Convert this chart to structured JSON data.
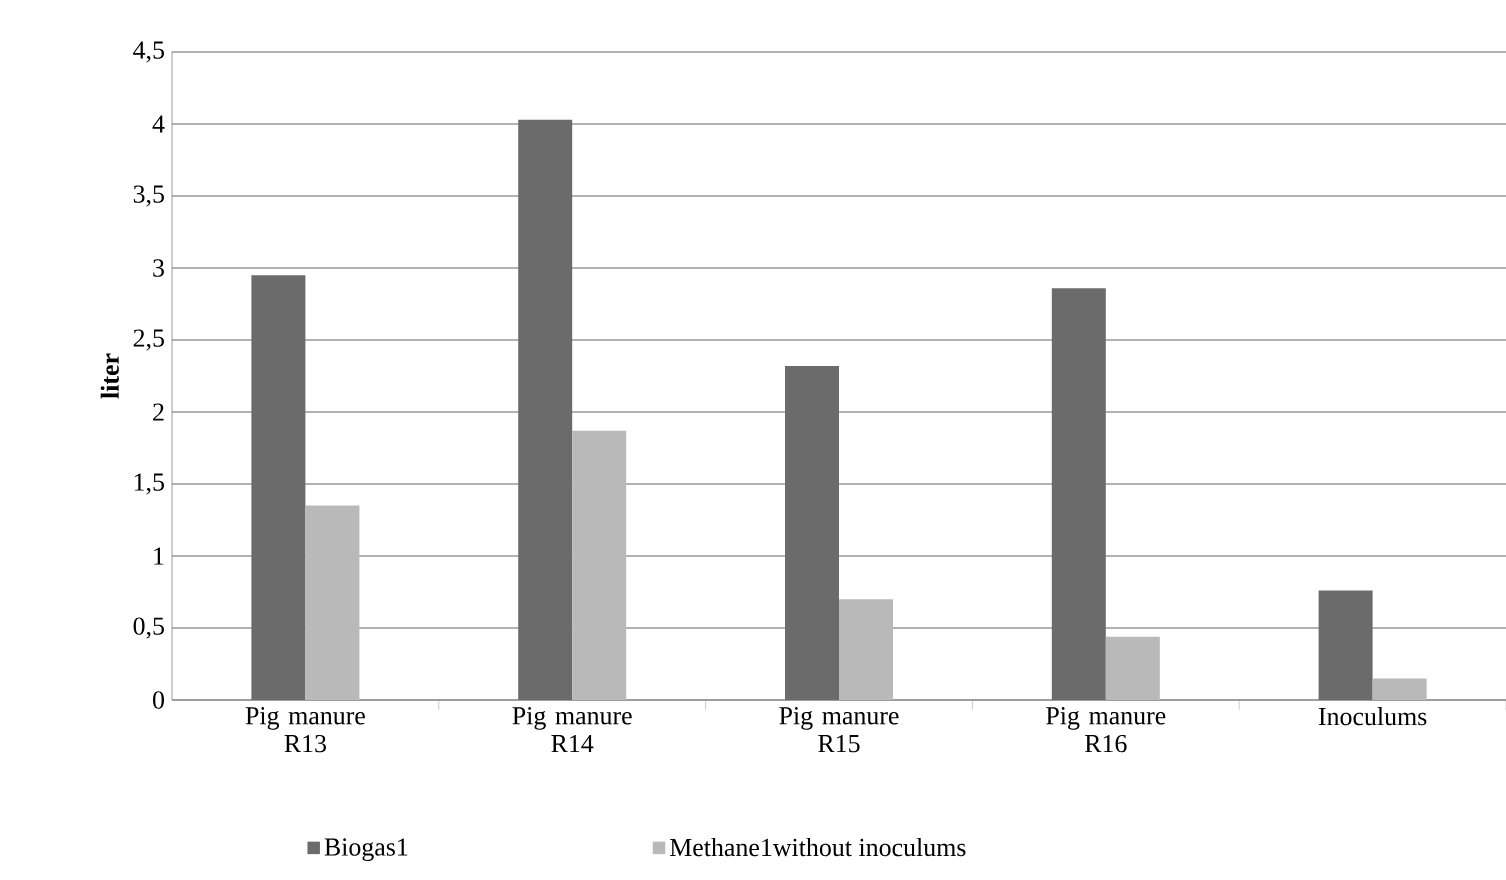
{
  "chart_data": {
    "type": "bar",
    "ylabel": "liter",
    "categories": [
      "Pig manure R13",
      "Pig manure R14",
      "Pig manure R15",
      "Pig manure R16",
      "Inoculums"
    ],
    "series": [
      {
        "name": "Biogas1",
        "color": "#6b6b6b",
        "values": [
          2.95,
          4.03,
          2.32,
          2.86,
          0.76
        ]
      },
      {
        "name": "Methane1without inoculums",
        "color": "#b9b9b9",
        "values": [
          1.35,
          1.87,
          0.7,
          0.44,
          0.15
        ]
      }
    ],
    "ylim": [
      0,
      4.5
    ],
    "yticks": [
      0,
      {
        "value": 0.5,
        "label": "0,5"
      },
      1,
      {
        "value": 1.5,
        "label": "1,5"
      },
      2,
      {
        "value": 2.5,
        "label": "2,5"
      },
      3,
      {
        "value": 3.5,
        "label": "3,5"
      },
      4,
      {
        "value": 4.5,
        "label": "4,5"
      }
    ],
    "grid": "y",
    "legend": "bottom"
  }
}
